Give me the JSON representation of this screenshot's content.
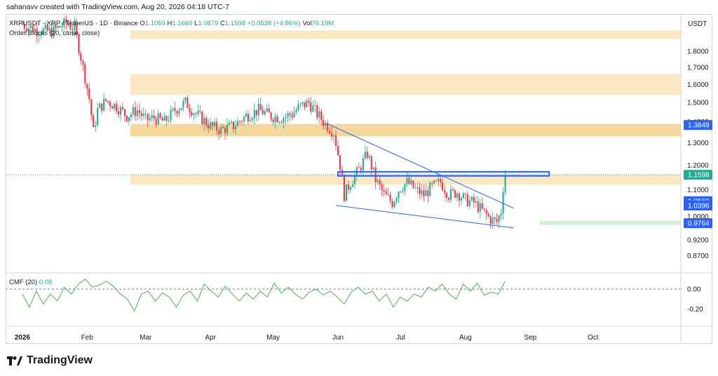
{
  "header_text": "sahanavv created with TradingView.com, Aug 20, 2026 04:18 UTC-7",
  "legend": {
    "symbol": "XRPUSDT · XRP / TetherUS · 1D · Binance",
    "open_label": "O",
    "open": "1.1059",
    "high_label": "H",
    "high": "1.1669",
    "low_label": "L",
    "low": "1.0879",
    "close_label": "C",
    "close": "1.1598",
    "change": "+0.0538 (+4.86%)",
    "vol_label": "Vol",
    "vol": "76.19M",
    "indicator": "Order Blocks (20, close, close)"
  },
  "cmf": {
    "label": "CMF (20)",
    "value": "0.08"
  },
  "footer": {
    "brand": "TradingView"
  },
  "colors": {
    "up": "#22ab94",
    "down": "#f23645",
    "zone": "#f7dca5",
    "zone_strong": "#f0c979",
    "trendline": "#2962ff",
    "price_tag": "#2962ff",
    "support_zone": "#c8edcf",
    "cmf_line": "#4caf50"
  },
  "chart_data": [
    {
      "type": "candlestick",
      "title": "XRPUSDT · XRP / TetherUS · 1D · Binance",
      "ylabel": "USDT",
      "yscale": "log",
      "ylim": [
        0.82,
        2.05
      ],
      "y_ticks": [
        "1.8000",
        "1.7000",
        "1.6000",
        "1.5000",
        "1.4000",
        "1.3000",
        "1.2000",
        "1.1000",
        "1.0000",
        "0.9200",
        "0.8700"
      ],
      "x_ticks": [
        "2026",
        "Feb",
        "Mar",
        "Apr",
        "May",
        "Jun",
        "Jul",
        "Aug",
        "Sep",
        "Oct"
      ],
      "price_tags": [
        "1.3849",
        "1.1598",
        "1.0560",
        "1.0396",
        "0.9764"
      ],
      "last_price": 1.1598,
      "grid": false,
      "series": [
        {
          "name": "XRPUSDT",
          "close_path": [
            [
              "2026-01-01",
              1.98
            ],
            [
              "2026-01-08",
              1.94
            ],
            [
              "2026-01-15",
              1.93
            ],
            [
              "2026-01-22",
              1.99
            ],
            [
              "2026-01-26",
              1.95
            ],
            [
              "2026-01-30",
              1.7
            ],
            [
              "2026-02-02",
              1.52
            ],
            [
              "2026-02-04",
              1.35
            ],
            [
              "2026-02-06",
              1.46
            ],
            [
              "2026-02-10",
              1.51
            ],
            [
              "2026-02-15",
              1.48
            ],
            [
              "2026-02-20",
              1.43
            ],
            [
              "2026-02-25",
              1.46
            ],
            [
              "2026-03-01",
              1.41
            ],
            [
              "2026-03-05",
              1.42
            ],
            [
              "2026-03-10",
              1.4
            ],
            [
              "2026-03-15",
              1.46
            ],
            [
              "2026-03-20",
              1.5
            ],
            [
              "2026-03-25",
              1.44
            ],
            [
              "2026-04-01",
              1.38
            ],
            [
              "2026-04-06",
              1.36
            ],
            [
              "2026-04-12",
              1.38
            ],
            [
              "2026-04-18",
              1.43
            ],
            [
              "2026-04-24",
              1.46
            ],
            [
              "2026-04-30",
              1.43
            ],
            [
              "2026-05-05",
              1.42
            ],
            [
              "2026-05-10",
              1.44
            ],
            [
              "2026-05-14",
              1.48
            ],
            [
              "2026-05-18",
              1.5
            ],
            [
              "2026-05-22",
              1.44
            ],
            [
              "2026-05-26",
              1.39
            ],
            [
              "2026-05-30",
              1.35
            ],
            [
              "2026-06-02",
              1.2
            ],
            [
              "2026-06-04",
              1.08
            ],
            [
              "2026-06-07",
              1.13
            ],
            [
              "2026-06-11",
              1.18
            ],
            [
              "2026-06-15",
              1.25
            ],
            [
              "2026-06-19",
              1.14
            ],
            [
              "2026-06-23",
              1.08
            ],
            [
              "2026-06-27",
              1.05
            ],
            [
              "2026-06-30",
              1.1
            ],
            [
              "2026-07-04",
              1.13
            ],
            [
              "2026-07-08",
              1.1
            ],
            [
              "2026-07-12",
              1.08
            ],
            [
              "2026-07-16",
              1.11
            ],
            [
              "2026-07-20",
              1.13
            ],
            [
              "2026-07-24",
              1.08
            ],
            [
              "2026-07-28",
              1.09
            ],
            [
              "2026-08-01",
              1.06
            ],
            [
              "2026-08-05",
              1.05
            ],
            [
              "2026-08-09",
              1.02
            ],
            [
              "2026-08-13",
              0.99
            ],
            [
              "2026-08-16",
              0.98
            ],
            [
              "2026-08-18",
              1.02
            ],
            [
              "2026-08-19",
              1.11
            ],
            [
              "2026-08-20",
              1.16
            ]
          ]
        }
      ],
      "order_block_zones": [
        {
          "from": 1.88,
          "to": 1.94
        },
        {
          "from": 1.54,
          "to": 1.66
        },
        {
          "from": 1.33,
          "to": 1.39,
          "strong": true
        },
        {
          "from": 1.12,
          "to": 1.16
        }
      ],
      "support_zone": {
        "from": 0.97,
        "to": 0.985
      },
      "rectangle": {
        "from_date": "2026-06-01",
        "to_date": "2026-09-10",
        "from": 1.155,
        "to": 1.172
      },
      "trendlines": [
        {
          "from": [
            "2026-05-27",
            1.39
          ],
          "to": [
            "2026-08-24",
            1.03
          ]
        },
        {
          "from": [
            "2026-05-31",
            1.04
          ],
          "to": [
            "2026-08-24",
            0.96
          ]
        }
      ]
    },
    {
      "type": "line",
      "title": "CMF (20)",
      "ylim": [
        -0.35,
        0.12
      ],
      "y_ticks": [
        "0.00",
        "-0.20"
      ],
      "series": [
        {
          "name": "CMF (20)",
          "values": [
            -0.05,
            -0.18,
            -0.02,
            -0.15,
            -0.05,
            -0.12,
            0.02,
            -0.05,
            0.05,
            0.1,
            0.02,
            0.04,
            0.08,
            0.03,
            -0.05,
            -0.1,
            -0.22,
            -0.05,
            -0.02,
            -0.12,
            -0.04,
            -0.08,
            -0.18,
            -0.06,
            -0.02,
            -0.12,
            0.05,
            -0.02,
            -0.08,
            0.03,
            -0.05,
            -0.12,
            -0.04,
            -0.1,
            -0.02,
            -0.08,
            0.06,
            -0.04,
            0.02,
            -0.05,
            -0.1,
            -0.03,
            0.0,
            -0.06,
            -0.02,
            -0.08,
            -0.15,
            -0.03,
            0.02,
            -0.05,
            -0.02,
            -0.12,
            -0.05,
            -0.18,
            -0.08,
            -0.12,
            -0.05,
            -0.08,
            0.02,
            -0.02,
            0.05,
            -0.05,
            -0.1,
            0.05,
            -0.02,
            0.06,
            -0.06,
            -0.03,
            -0.05,
            0.08
          ]
        }
      ]
    }
  ]
}
